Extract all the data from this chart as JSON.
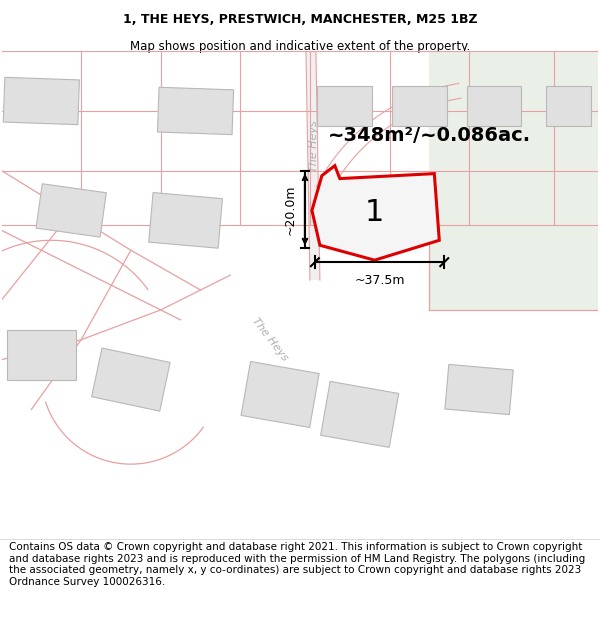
{
  "title": "1, THE HEYS, PRESTWICH, MANCHESTER, M25 1BZ",
  "subtitle": "Map shows position and indicative extent of the property.",
  "footer": "Contains OS data © Crown copyright and database right 2021. This information is subject to Crown copyright and database rights 2023 and is reproduced with the permission of HM Land Registry. The polygons (including the associated geometry, namely x, y co-ordinates) are subject to Crown copyright and database rights 2023 Ordnance Survey 100026316.",
  "area_label": "~348m²/~0.086ac.",
  "property_number": "1",
  "width_label": "~37.5m",
  "height_label": "~20.0m",
  "map_bg": "#f7f7f5",
  "parcel_edge_color": "#e8a0a0",
  "building_fill": "#e0e0e0",
  "building_edge": "#b8b8b8",
  "highlight_edge": "#dd0000",
  "highlight_fill": "#f5f5f5",
  "green_fill": "#eaf0e8",
  "title_fontsize": 9,
  "subtitle_fontsize": 8.5,
  "footer_fontsize": 7.5
}
